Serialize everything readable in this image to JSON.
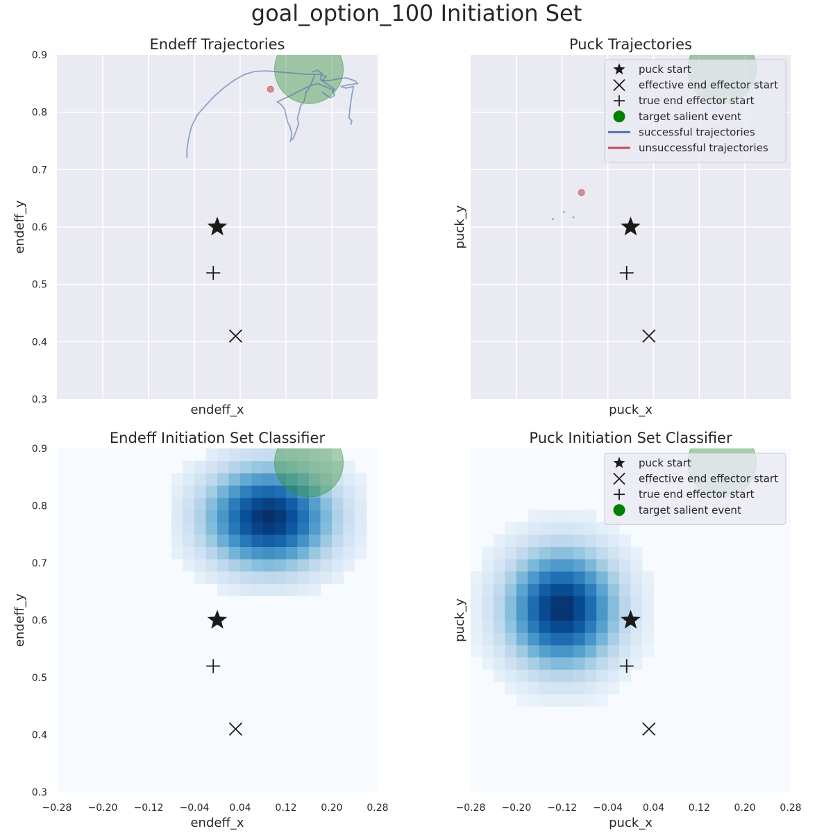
{
  "figure": {
    "title": "goal_option_100 Initiation Set"
  },
  "chart_data": [
    {
      "type": "line",
      "title": "Endeff Trajectories",
      "xlabel": "endeff_x",
      "ylabel": "endeff_y",
      "xlim": [
        -0.28,
        0.28
      ],
      "ylim": [
        0.3,
        0.9
      ],
      "xticks": [],
      "yticks": [
        "0.3",
        "0.4",
        "0.5",
        "0.6",
        "0.7",
        "0.8",
        "0.9"
      ],
      "grid": true,
      "markers": {
        "puck_start": [
          0.0,
          0.6
        ],
        "effective_end_effector_start": [
          0.032,
          0.41
        ],
        "true_end_effector_start": [
          -0.007,
          0.52
        ],
        "target_salient_event": {
          "x": 0.16,
          "y": 0.875,
          "radius": 0.06
        },
        "red_point": [
          0.093,
          0.84
        ]
      },
      "series": [
        {
          "status": "successful",
          "points": [
            [
              -0.053,
              0.72
            ],
            [
              -0.053,
              0.735
            ],
            [
              -0.05,
              0.755
            ],
            [
              -0.045,
              0.775
            ],
            [
              -0.035,
              0.795
            ],
            [
              -0.02,
              0.812
            ],
            [
              -0.005,
              0.828
            ],
            [
              0.012,
              0.843
            ],
            [
              0.03,
              0.856
            ],
            [
              0.048,
              0.866
            ],
            [
              0.065,
              0.871
            ],
            [
              0.085,
              0.872
            ],
            [
              0.11,
              0.87
            ],
            [
              0.135,
              0.868
            ],
            [
              0.16,
              0.866
            ],
            [
              0.18,
              0.866
            ],
            [
              0.19,
              0.862
            ],
            [
              0.183,
              0.855
            ],
            [
              0.195,
              0.855
            ],
            [
              0.21,
              0.858
            ],
            [
              0.225,
              0.86
            ],
            [
              0.24,
              0.855
            ],
            [
              0.245,
              0.85
            ],
            [
              0.23,
              0.848
            ],
            [
              0.215,
              0.845
            ],
            [
              0.225,
              0.842
            ],
            [
              0.238,
              0.845
            ],
            [
              0.235,
              0.83
            ],
            [
              0.232,
              0.81
            ],
            [
              0.23,
              0.79
            ],
            [
              0.235,
              0.785
            ],
            [
              0.233,
              0.778
            ]
          ]
        },
        {
          "status": "successful",
          "points": [
            [
              0.17,
              0.865
            ],
            [
              0.165,
              0.852
            ],
            [
              0.16,
              0.842
            ],
            [
              0.155,
              0.835
            ],
            [
              0.152,
              0.82
            ],
            [
              0.145,
              0.81
            ],
            [
              0.143,
              0.8
            ],
            [
              0.14,
              0.79
            ],
            [
              0.142,
              0.78
            ],
            [
              0.138,
              0.768
            ],
            [
              0.133,
              0.755
            ],
            [
              0.128,
              0.75
            ],
            [
              0.13,
              0.762
            ],
            [
              0.127,
              0.775
            ],
            [
              0.123,
              0.782
            ],
            [
              0.12,
              0.795
            ],
            [
              0.118,
              0.805
            ],
            [
              0.113,
              0.812
            ],
            [
              0.105,
              0.818
            ],
            [
              0.115,
              0.823
            ],
            [
              0.13,
              0.83
            ],
            [
              0.145,
              0.838
            ],
            [
              0.16,
              0.845
            ],
            [
              0.175,
              0.85
            ],
            [
              0.188,
              0.845
            ],
            [
              0.2,
              0.84
            ],
            [
              0.205,
              0.83
            ],
            [
              0.198,
              0.825
            ],
            [
              0.19,
              0.83
            ],
            [
              0.183,
              0.835
            ]
          ]
        },
        {
          "status": "successful",
          "points": [
            [
              0.165,
              0.87
            ],
            [
              0.175,
              0.873
            ],
            [
              0.183,
              0.868
            ],
            [
              0.18,
              0.858
            ],
            [
              0.19,
              0.85
            ],
            [
              0.198,
              0.845
            ],
            [
              0.205,
              0.84
            ],
            [
              0.2,
              0.835
            ]
          ]
        }
      ]
    },
    {
      "type": "scatter",
      "title": "Puck Trajectories",
      "xlabel": "puck_x",
      "ylabel": "puck_y",
      "xlim": [
        -0.28,
        0.28
      ],
      "ylim": [
        0.3,
        0.9
      ],
      "xticks": [],
      "yticks": [],
      "grid": true,
      "markers": {
        "puck_start": [
          0.0,
          0.6
        ],
        "effective_end_effector_start": [
          0.032,
          0.41
        ],
        "true_end_effector_start": [
          -0.007,
          0.52
        ],
        "target_salient_event": {
          "x": 0.16,
          "y": 0.875,
          "radius": 0.06
        },
        "red_point": [
          -0.086,
          0.66
        ]
      },
      "small_points": [
        [
          -0.136,
          0.614
        ],
        [
          -0.117,
          0.626
        ],
        [
          -0.1,
          0.617
        ]
      ],
      "legend": {
        "placement": "top-right",
        "items": [
          {
            "key": "puck_start",
            "label": "puck start"
          },
          {
            "key": "effective",
            "label": "effective end effector start"
          },
          {
            "key": "true",
            "label": "true end effector start"
          },
          {
            "key": "target",
            "label": "target salient event"
          },
          {
            "key": "successful",
            "label": "successful trajectories"
          },
          {
            "key": "unsuccessful",
            "label": "unsuccessful trajectories"
          }
        ]
      }
    },
    {
      "type": "heatmap",
      "title": "Endeff Initiation Set Classifier",
      "xlabel": "endeff_x",
      "ylabel": "endeff_y",
      "xlim": [
        -0.28,
        0.28
      ],
      "ylim": [
        0.3,
        0.9
      ],
      "xticks": [
        "−0.28",
        "−0.20",
        "−0.12",
        "−0.04",
        "0.04",
        "0.12",
        "0.20",
        "0.28"
      ],
      "yticks": [
        "0.3",
        "0.4",
        "0.5",
        "0.6",
        "0.7",
        "0.8",
        "0.9"
      ],
      "grid": false,
      "colormap": "Blues",
      "peak": {
        "x": 0.09,
        "y": 0.78
      },
      "spread": {
        "x": 0.08,
        "y": 0.065
      },
      "cutoff": 0.08,
      "markers": {
        "puck_start": [
          0.0,
          0.6
        ],
        "effective_end_effector_start": [
          0.032,
          0.41
        ],
        "true_end_effector_start": [
          -0.007,
          0.52
        ],
        "target_salient_event": {
          "x": 0.16,
          "y": 0.875,
          "radius": 0.06
        }
      }
    },
    {
      "type": "heatmap",
      "title": "Puck Initiation Set Classifier",
      "xlabel": "puck_x",
      "ylabel": "puck_y",
      "xlim": [
        -0.28,
        0.28
      ],
      "ylim": [
        0.3,
        0.9
      ],
      "xticks": [
        "−0.28",
        "−0.20",
        "−0.12",
        "−0.04",
        "0.04",
        "0.12",
        "0.20",
        "0.28"
      ],
      "yticks": [],
      "grid": false,
      "colormap": "Blues",
      "peak": {
        "x": -0.12,
        "y": 0.62
      },
      "spread": {
        "x": 0.07,
        "y": 0.075
      },
      "cutoff": 0.06,
      "markers": {
        "puck_start": [
          0.0,
          0.6
        ],
        "effective_end_effector_start": [
          0.032,
          0.41
        ],
        "true_end_effector_start": [
          -0.007,
          0.52
        ],
        "target_salient_event": {
          "x": 0.16,
          "y": 0.875,
          "radius": 0.06
        }
      },
      "legend": {
        "placement": "top-right",
        "items": [
          {
            "key": "puck_start",
            "label": "puck start"
          },
          {
            "key": "effective",
            "label": "effective end effector start"
          },
          {
            "key": "true",
            "label": "true end effector start"
          },
          {
            "key": "target",
            "label": "target salient event"
          }
        ]
      }
    }
  ],
  "colors": {
    "axes_bg": "#eaeaf2",
    "grid": "#ffffff",
    "text": "#262626",
    "successful": "#4c72b0",
    "unsuccessful": "#c44e52",
    "target": "#2e8b2e",
    "legend_target": "#008000",
    "marker": "#1a1a1a"
  }
}
